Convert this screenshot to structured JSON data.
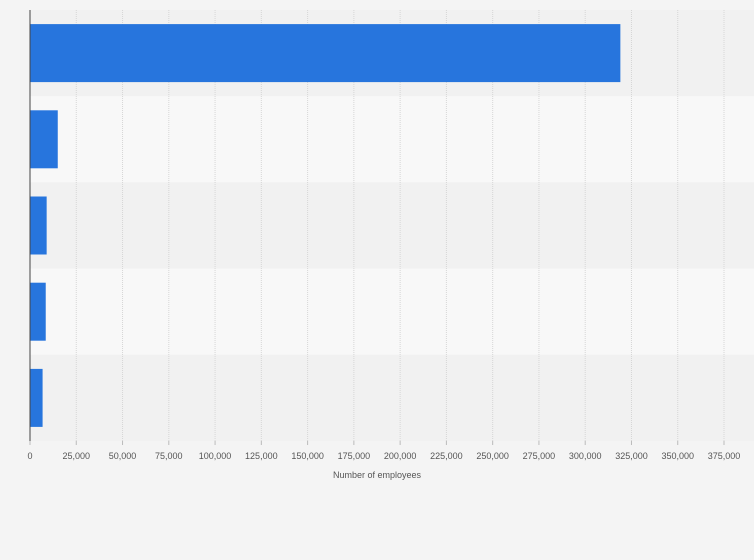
{
  "chart_data": {
    "type": "bar",
    "orientation": "horizontal",
    "categories": [
      "",
      "",
      "",
      "",
      ""
    ],
    "values": [
      319000,
      15000,
      9000,
      8500,
      6800
    ],
    "xlabel": "Number of employees",
    "ylabel": "",
    "xlim": [
      0,
      375000
    ],
    "x_ticks": [
      0,
      25000,
      50000,
      75000,
      100000,
      125000,
      150000,
      175000,
      200000,
      225000,
      250000,
      275000,
      300000,
      325000,
      350000,
      375000
    ],
    "x_tick_labels": [
      "0",
      "25,000",
      "50,000",
      "75,000",
      "100,000",
      "125,000",
      "150,000",
      "175,000",
      "200,000",
      "225,000",
      "250,000",
      "275,000",
      "300,000",
      "325,000",
      "350,000",
      "375,000"
    ],
    "grid": true,
    "legend": "none",
    "colors": {
      "bar": "#2775dd",
      "band_dark": "#f1f1f1",
      "band_light": "#f8f8f8",
      "grid": "#d6d6d6",
      "axis": "#444444",
      "background": "#f4f4f4"
    }
  }
}
